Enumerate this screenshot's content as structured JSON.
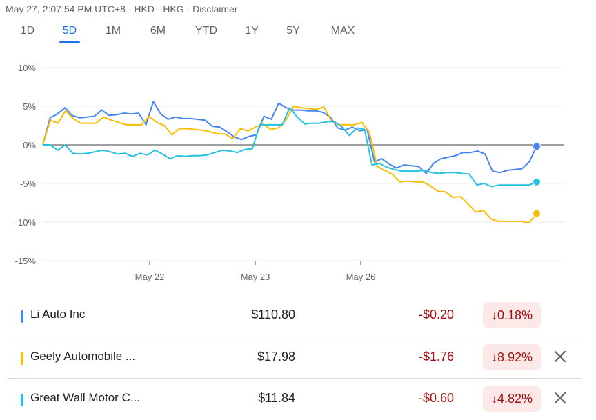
{
  "header": {
    "timestamp": "May 27, 2:07:54 PM UTC+8 · HKD · HKG · Disclaimer"
  },
  "tabs": [
    {
      "label": "1D",
      "active": false
    },
    {
      "label": "5D",
      "active": true
    },
    {
      "label": "1M",
      "active": false
    },
    {
      "label": "6M",
      "active": false
    },
    {
      "label": "YTD",
      "active": false
    },
    {
      "label": "1Y",
      "active": false
    },
    {
      "label": "5Y",
      "active": false
    },
    {
      "label": "MAX",
      "active": false
    }
  ],
  "chart_data": {
    "type": "line",
    "y_ticks": [
      "10%",
      "5%",
      "0%",
      "-5%",
      "-10%",
      "-15%"
    ],
    "ylim": [
      -15,
      10
    ],
    "x_ticks": [
      "May 22",
      "May 23",
      "May 26"
    ],
    "grid": true,
    "colors": {
      "li": "#4285f4",
      "geely": "#fbbc04",
      "gwm": "#24c1e0"
    },
    "series": [
      {
        "key": "li",
        "values": [
          0,
          3.5,
          4,
          4.8,
          3.8,
          3.5,
          3.6,
          3.7,
          4.5,
          3.8,
          3.9,
          4.1,
          4.0,
          4.1,
          2.6,
          5.6,
          4.0,
          3.3,
          3.6,
          3.4,
          3.4,
          3.3,
          3.2,
          2.4,
          2.3,
          1.7,
          1.0,
          0.7,
          1.1,
          1.3,
          3.7,
          3.3,
          5.4,
          4.8,
          4.5,
          4.5,
          4.4,
          4.4,
          4.2,
          3.6,
          2.2,
          1.9,
          2.3,
          1.8,
          2.0,
          -2.2,
          -1.8,
          -2.5,
          -3.0,
          -2.6,
          -2.7,
          -2.8,
          -3.7,
          -2.4,
          -1.8,
          -1.6,
          -1.4,
          -1.0,
          -1.0,
          -0.8,
          -1.2,
          -3.4,
          -3.6,
          -3.3,
          -3.2,
          -3.1,
          -2.2,
          -0.2
        ]
      },
      {
        "key": "geely",
        "values": [
          0,
          3.2,
          2.8,
          4.4,
          3.4,
          2.8,
          2.8,
          2.8,
          3.6,
          3.2,
          2.9,
          2.6,
          2.6,
          2.6,
          3.7,
          2.9,
          2.5,
          1.3,
          2.1,
          2.1,
          2.0,
          1.9,
          1.7,
          1.4,
          1.4,
          0.8,
          2.1,
          1.8,
          2.3,
          2.7,
          2.0,
          2.2,
          3.2,
          5.0,
          4.8,
          4.7,
          4.6,
          4.9,
          3.1,
          2.6,
          2.6,
          2.6,
          2.9,
          1.6,
          -2.8,
          -3.3,
          -3.8,
          -4.8,
          -4.7,
          -4.8,
          -4.8,
          -5.3,
          -6.0,
          -6.1,
          -6.8,
          -6.7,
          -7.7,
          -8.7,
          -8.5,
          -9.6,
          -9.9,
          -9.9,
          -9.9,
          -9.9,
          -10.1,
          -8.9
        ]
      },
      {
        "key": "gwm",
        "values": [
          0,
          0,
          -0.7,
          0,
          -1.1,
          -1.2,
          -1.1,
          -0.9,
          -0.7,
          -0.9,
          -1.2,
          -1.1,
          -1.5,
          -1.1,
          -1.3,
          -0.7,
          -1.2,
          -1.8,
          -1.4,
          -1.5,
          -1.4,
          -1.4,
          -1.3,
          -1.0,
          -0.7,
          -0.8,
          -1.0,
          -0.6,
          -0.5,
          2.6,
          2.6,
          2.6,
          2.6,
          4.8,
          3.6,
          2.7,
          2.8,
          2.8,
          3.0,
          3.0,
          2.3,
          1.2,
          2.2,
          2.0,
          -2.6,
          -2.4,
          -2.9,
          -3.2,
          -3.4,
          -3.4,
          -3.4,
          -3.3,
          -3.6,
          -3.7,
          -3.6,
          -3.6,
          -3.7,
          -3.8,
          -5.2,
          -5.0,
          -5.4,
          -5.2,
          -5.2,
          -5.2,
          -5.2,
          -5.2,
          -4.8
        ]
      }
    ]
  },
  "stocks": [
    {
      "name": "Li Auto Inc",
      "price": "$110.80",
      "change": "-$0.20",
      "arrow": "↓",
      "pct": "0.18%",
      "color": "#4285f4",
      "removable": false
    },
    {
      "name": "Geely Automobile ...",
      "price": "$17.98",
      "change": "-$1.76",
      "arrow": "↓",
      "pct": "8.92%",
      "color": "#fbbc04",
      "removable": true
    },
    {
      "name": "Great Wall Motor C...",
      "price": "$11.84",
      "change": "-$0.60",
      "arrow": "↓",
      "pct": "4.82%",
      "color": "#24c1e0",
      "removable": true
    }
  ]
}
